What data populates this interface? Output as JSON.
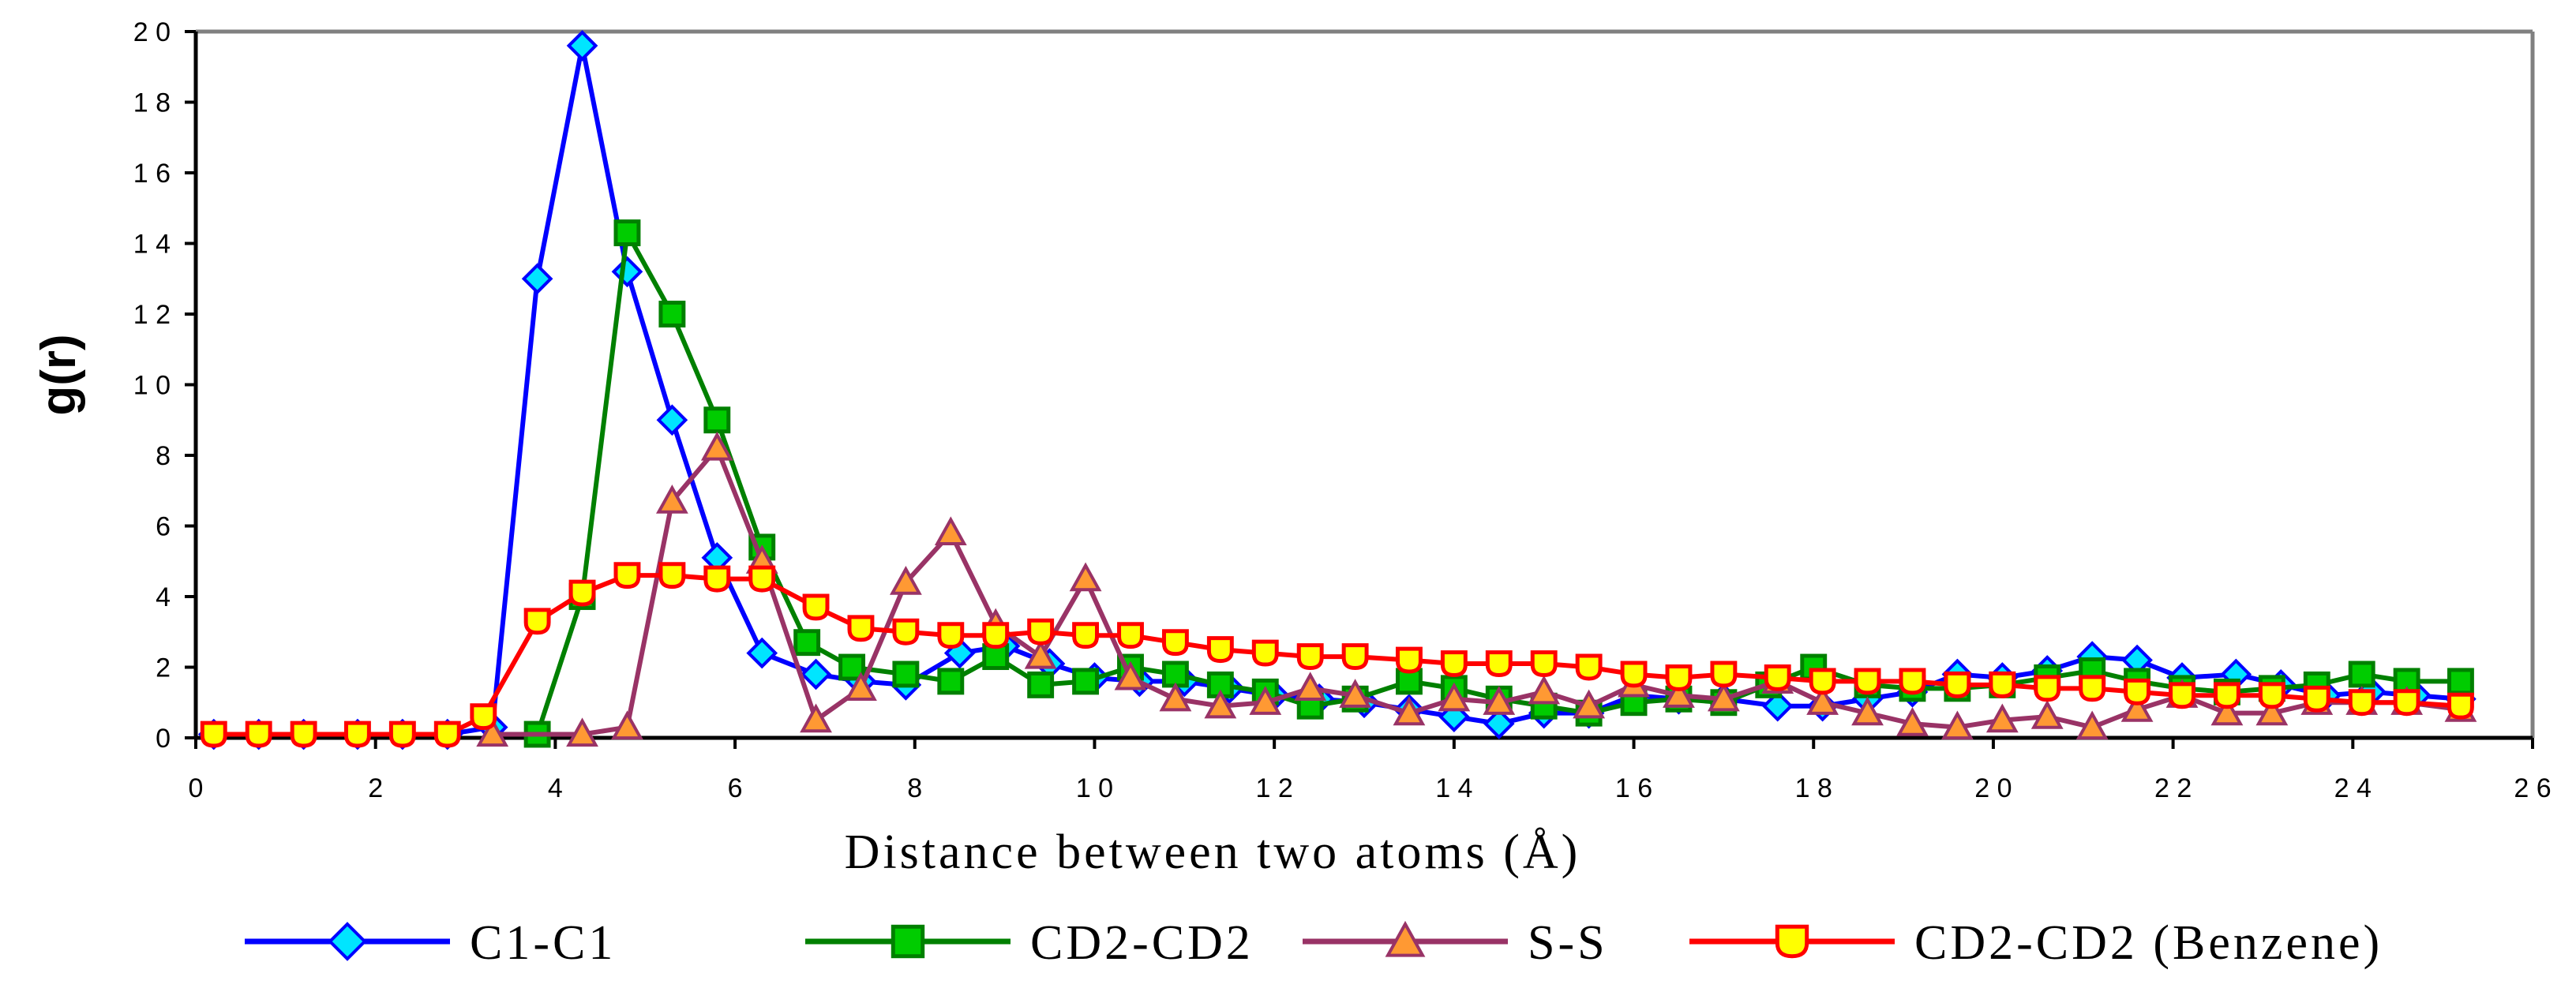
{
  "chart_data": {
    "type": "line",
    "title": "",
    "xlabel": "Distance between two atoms (Å)",
    "ylabel": "g(r)",
    "xlim": [
      0,
      26
    ],
    "ylim": [
      0,
      20
    ],
    "xticks": [
      "0",
      "2",
      "4",
      "6",
      "8",
      "1 0",
      "1 2",
      "1 4",
      "1 6",
      "1 8",
      "2 0",
      "2 2",
      "2 4",
      "2 6"
    ],
    "yticks": [
      "0",
      "2",
      "4",
      "6",
      "8",
      "1 0",
      "1 2",
      "1 4",
      "1 6",
      "1 8",
      "2 0"
    ],
    "grid": false,
    "legend_position": "bottom",
    "series": [
      {
        "name": "C1-C1",
        "color": "#0000ff",
        "marker": "diamond",
        "marker_fill": "#00e5ff",
        "x": [
          0.2,
          0.7,
          1.2,
          1.8,
          2.3,
          2.8,
          3.3,
          3.8,
          4.3,
          4.8,
          5.3,
          5.8,
          6.3,
          6.9,
          7.4,
          7.9,
          8.5,
          9.0,
          9.5,
          10.0,
          10.5,
          11.0,
          11.5,
          12.0,
          12.5,
          13.0,
          13.5,
          14.0,
          14.5,
          15.0,
          15.5,
          16.0,
          16.5,
          17.0,
          17.6,
          18.1,
          18.6,
          19.1,
          19.6,
          20.1,
          20.6,
          21.1,
          21.6,
          22.1,
          22.7,
          23.2,
          23.7,
          24.2,
          24.7,
          25.2
        ],
        "y": [
          0.1,
          0.1,
          0.1,
          0.1,
          0.1,
          0.1,
          0.3,
          13.0,
          19.6,
          13.2,
          9.0,
          5.1,
          2.4,
          1.8,
          1.6,
          1.5,
          2.4,
          2.6,
          2.1,
          1.7,
          1.6,
          1.6,
          1.4,
          1.2,
          1.1,
          1.0,
          0.8,
          0.6,
          0.4,
          0.7,
          0.7,
          1.2,
          1.1,
          1.1,
          0.9,
          0.9,
          1.1,
          1.3,
          1.8,
          1.7,
          1.9,
          2.3,
          2.2,
          1.7,
          1.8,
          1.5,
          1.2,
          1.3,
          1.2,
          1.1
        ]
      },
      {
        "name": "CD2-CD2",
        "color": "#008000",
        "marker": "square",
        "marker_fill": "#00cc00",
        "x": [
          3.8,
          4.3,
          4.8,
          5.3,
          5.8,
          6.3,
          6.8,
          7.3,
          7.9,
          8.4,
          8.9,
          9.4,
          9.9,
          10.4,
          10.9,
          11.4,
          11.9,
          12.4,
          12.9,
          13.5,
          14.0,
          14.5,
          15.0,
          15.5,
          16.0,
          16.5,
          17.0,
          17.5,
          18.0,
          18.6,
          19.1,
          19.6,
          20.1,
          20.6,
          21.1,
          21.6,
          22.1,
          22.6,
          23.1,
          23.6,
          24.1,
          24.6,
          25.2
        ],
        "y": [
          0.1,
          4.0,
          14.3,
          12.0,
          9.0,
          5.4,
          2.7,
          2.0,
          1.8,
          1.6,
          2.3,
          1.5,
          1.6,
          2.0,
          1.8,
          1.5,
          1.3,
          0.9,
          1.1,
          1.6,
          1.4,
          1.1,
          0.9,
          0.7,
          1.0,
          1.1,
          1.0,
          1.5,
          2.0,
          1.5,
          1.4,
          1.4,
          1.5,
          1.7,
          1.9,
          1.6,
          1.4,
          1.3,
          1.4,
          1.5,
          1.8,
          1.6,
          1.6
        ]
      },
      {
        "name": "S-S",
        "color": "#993366",
        "marker": "triangle",
        "marker_fill": "#ff9933",
        "x": [
          3.3,
          4.3,
          4.8,
          5.3,
          5.8,
          6.3,
          6.9,
          7.4,
          7.9,
          8.4,
          8.9,
          9.4,
          9.9,
          10.4,
          10.9,
          11.4,
          11.9,
          12.4,
          12.9,
          13.5,
          14.0,
          14.5,
          15.0,
          15.5,
          16.0,
          16.5,
          17.0,
          17.6,
          18.1,
          18.6,
          19.1,
          19.6,
          20.1,
          20.6,
          21.1,
          21.6,
          22.1,
          22.6,
          23.1,
          23.6,
          24.1,
          24.6,
          25.2
        ],
        "y": [
          0.1,
          0.1,
          0.3,
          6.7,
          8.2,
          5.0,
          0.5,
          1.4,
          4.4,
          5.8,
          3.2,
          2.3,
          4.5,
          1.7,
          1.1,
          0.9,
          1.0,
          1.4,
          1.2,
          0.7,
          1.1,
          1.0,
          1.3,
          0.9,
          1.5,
          1.2,
          1.1,
          1.6,
          1.0,
          0.7,
          0.4,
          0.3,
          0.5,
          0.6,
          0.3,
          0.8,
          1.2,
          0.7,
          0.7,
          1.0,
          1.0,
          1.0,
          0.8
        ]
      },
      {
        "name": "CD2-CD2 (Benzene)",
        "color": "#ff0000",
        "marker": "shield",
        "marker_fill": "#ffff00",
        "x": [
          0.2,
          0.7,
          1.2,
          1.8,
          2.3,
          2.8,
          3.2,
          3.8,
          4.3,
          4.8,
          5.3,
          5.8,
          6.3,
          6.9,
          7.4,
          7.9,
          8.4,
          8.9,
          9.4,
          9.9,
          10.4,
          10.9,
          11.4,
          11.9,
          12.4,
          12.9,
          13.5,
          14.0,
          14.5,
          15.0,
          15.5,
          16.0,
          16.5,
          17.0,
          17.6,
          18.1,
          18.6,
          19.1,
          19.6,
          20.1,
          20.6,
          21.1,
          21.6,
          22.1,
          22.6,
          23.1,
          23.6,
          24.1,
          24.6,
          25.2
        ],
        "y": [
          0.1,
          0.1,
          0.1,
          0.1,
          0.1,
          0.1,
          0.6,
          3.3,
          4.1,
          4.6,
          4.6,
          4.5,
          4.5,
          3.7,
          3.1,
          3.0,
          2.9,
          2.9,
          3.0,
          2.9,
          2.9,
          2.7,
          2.5,
          2.4,
          2.3,
          2.3,
          2.2,
          2.1,
          2.1,
          2.1,
          2.0,
          1.8,
          1.7,
          1.8,
          1.7,
          1.6,
          1.6,
          1.6,
          1.5,
          1.5,
          1.4,
          1.4,
          1.3,
          1.2,
          1.2,
          1.2,
          1.1,
          1.0,
          1.0,
          0.9
        ]
      }
    ]
  }
}
